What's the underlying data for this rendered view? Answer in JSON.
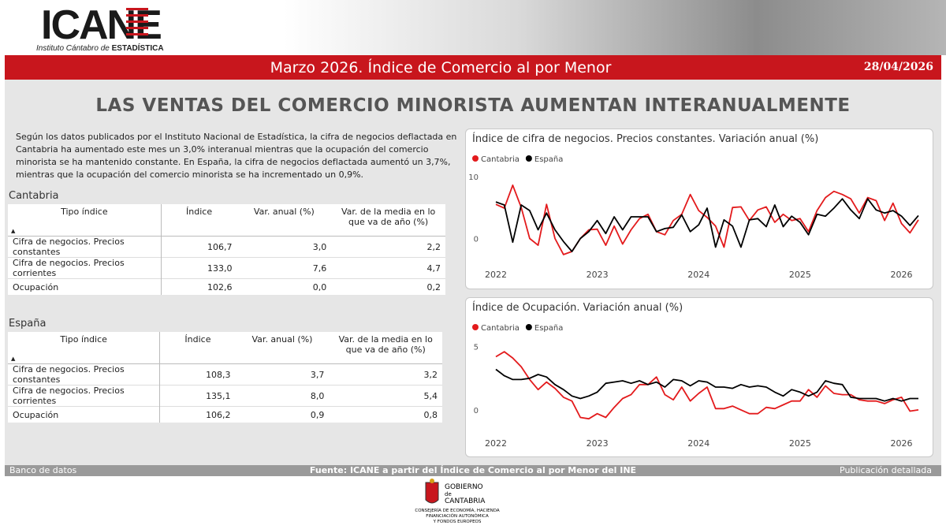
{
  "header": {
    "logo": "ICANE",
    "logo_subtitle": "Instituto Cántabro de",
    "logo_subtitle_bold": "ESTADÍSTICA",
    "report_title": "Marzo 2026. Índice de Comercio al por Menor",
    "date": "28/04/2026"
  },
  "headline": "LAS VENTAS DEL COMERCIO MINORISTA AUMENTAN INTERANUALMENTE",
  "paragraph": "Según los datos publicados por el Instituto Nacional de Estadística, la cifra de negocios deflactada en Cantabria ha aumentado este mes un 3,0% interanual mientras que la ocupación del comercio minorista se ha mantenido constante. En España, la cifra de negocios deflactada aumentó un 3,7%, mientras que la ocupación del comercio minorista se ha incrementado un 0,9%.",
  "tables": [
    {
      "title": "Cantabria",
      "columns": [
        "Tipo índice",
        "Índice",
        "Var. anual (%)",
        "Var. de la media en lo que va de año (%)"
      ],
      "rows": [
        [
          "Cifra de negocios. Precios constantes",
          "106,7",
          "3,0",
          "2,2"
        ],
        [
          "Cifra de negocios. Precios corrientes",
          "133,0",
          "7,6",
          "4,7"
        ],
        [
          "Ocupación",
          "102,6",
          "0,0",
          "0,2"
        ]
      ]
    },
    {
      "title": "España",
      "columns": [
        "Tipo índice",
        "Índice",
        "Var. anual (%)",
        "Var. de la media en lo que va de año (%)"
      ],
      "rows": [
        [
          "Cifra de negocios. Precios constantes",
          "108,3",
          "3,7",
          "3,2"
        ],
        [
          "Cifra de negocios. Precios corrientes",
          "135,1",
          "8,0",
          "5,4"
        ],
        [
          "Ocupación",
          "106,2",
          "0,9",
          "0,8"
        ]
      ]
    }
  ],
  "chart_data": [
    {
      "type": "line",
      "title": "Índice de cifra de negocios. Precios constantes. Variación anual (%)",
      "categories": [
        "2022",
        null,
        null,
        null,
        null,
        null,
        null,
        null,
        null,
        null,
        null,
        null,
        "2023",
        null,
        null,
        null,
        null,
        null,
        null,
        null,
        null,
        null,
        null,
        null,
        "2024",
        null,
        null,
        null,
        null,
        null,
        null,
        null,
        null,
        null,
        null,
        null,
        "2025",
        null,
        null,
        null,
        null,
        null,
        null,
        null,
        null,
        null,
        null,
        null,
        "2026",
        null,
        null
      ],
      "ylim": [
        -3.5,
        11
      ],
      "yticks": [
        0,
        10
      ],
      "grid": false,
      "series": [
        {
          "name": "Cantabria",
          "color": "#e31a1c",
          "values": [
            5.5,
            4.9,
            8.6,
            5,
            0,
            -1.1,
            5.5,
            0,
            -2.6,
            -2.1,
            0,
            1.4,
            1.5,
            -1.1,
            2,
            -0.9,
            1.4,
            3.2,
            3.9,
            1.1,
            0.6,
            2.9,
            3.9,
            7.1,
            4.5,
            3.4,
            2,
            -1.4,
            5,
            5.1,
            2.9,
            4.6,
            5.1,
            2.6,
            3.9,
            2.9,
            3.2,
            1.1,
            4.5,
            6.6,
            7.6,
            7.1,
            6.4,
            4.1,
            6.6,
            6.1,
            2.9,
            5.7,
            2.4,
            0.9,
            3.0
          ]
        },
        {
          "name": "España",
          "color": "#000000",
          "values": [
            5.9,
            5.4,
            -0.6,
            5.4,
            4.5,
            1.4,
            4.1,
            1.4,
            -0.5,
            -2.1,
            0,
            1.1,
            2.9,
            0.8,
            3.5,
            1.4,
            3.5,
            3.5,
            3.5,
            1.1,
            1.6,
            1.8,
            3.8,
            1.1,
            2.2,
            4.9,
            -1.4,
            3,
            2,
            -1.4,
            3,
            3.2,
            1.9,
            5.4,
            1.9,
            3.6,
            2.6,
            0.6,
            3.9,
            3.6,
            4.9,
            6.4,
            4.6,
            3.2,
            6.4,
            4.6,
            4.1,
            4.5,
            3.6,
            2.1,
            3.7
          ]
        }
      ]
    },
    {
      "type": "line",
      "title": "Índice de Ocupación. Variación anual (%)",
      "categories": [
        "2022",
        null,
        null,
        null,
        null,
        null,
        null,
        null,
        null,
        null,
        null,
        null,
        "2023",
        null,
        null,
        null,
        null,
        null,
        null,
        null,
        null,
        null,
        null,
        null,
        "2024",
        null,
        null,
        null,
        null,
        null,
        null,
        null,
        null,
        null,
        null,
        null,
        "2025",
        null,
        null,
        null,
        null,
        null,
        null,
        null,
        null,
        null,
        null,
        null,
        "2026",
        null,
        null
      ],
      "ylim": [
        -1.5,
        5.6
      ],
      "yticks": [
        0,
        5
      ],
      "grid": false,
      "series": [
        {
          "name": "Cantabria",
          "color": "#e31a1c",
          "values": [
            4.2,
            4.6,
            4.1,
            3.4,
            2.4,
            1.6,
            2.2,
            1.7,
            1,
            0.7,
            -0.6,
            -0.7,
            -0.3,
            -0.6,
            0.2,
            0.9,
            1.2,
            2,
            2,
            2.6,
            1.2,
            0.8,
            1.8,
            0.7,
            1.3,
            1.8,
            0.1,
            0.1,
            0.3,
            0,
            -0.3,
            -0.3,
            0.2,
            0.1,
            0.4,
            0.7,
            0.7,
            1.6,
            1,
            1.9,
            1.3,
            1.2,
            1.2,
            0.8,
            0.7,
            0.7,
            0.5,
            0.8,
            1,
            -0.1,
            0
          ]
        },
        {
          "name": "España",
          "color": "#000000",
          "values": [
            3.2,
            2.7,
            2.4,
            2.4,
            2.5,
            2.8,
            2.6,
            2,
            1.6,
            1.1,
            0.9,
            1.1,
            1.4,
            2.1,
            2.2,
            2.3,
            2.1,
            2.3,
            2,
            2.2,
            1.8,
            2.4,
            2.3,
            1.9,
            2.3,
            2.2,
            1.8,
            1.8,
            1.7,
            2,
            1.8,
            1.9,
            1.8,
            1.4,
            1.1,
            1.6,
            1.4,
            1.1,
            1.4,
            2.3,
            2.1,
            2,
            1,
            0.9,
            0.9,
            0.9,
            0.7,
            0.9,
            0.7,
            0.9,
            0.9
          ]
        }
      ]
    }
  ],
  "footer": {
    "left": "Banco de datos",
    "center": "Fuente: ICANE a partir del Índice de Comercio al por Menor del INE",
    "right": "Publicación detallada"
  },
  "government": {
    "name_1": "GOBIERNO",
    "name_2": "de",
    "name_3": "CANTABRIA",
    "department_1": "CONSEJERÍA DE ECONOMÍA, HACIENDA",
    "department_2": "FINANCIACIÓN AUTONÓMICA",
    "department_3": "Y FONDOS EUROPEOS"
  }
}
